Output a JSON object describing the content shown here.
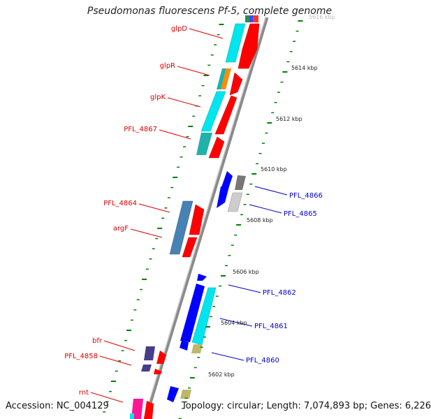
{
  "title": "Pseudomonas fluorescens Pf-5, complete genome",
  "accession_text": "Accession: NC_004129",
  "topology_text": "Topology: circular; Length: 7,074,893 bp; Genes: 6,226",
  "ticks": [
    "5614 kbp",
    "5612 kbp",
    "5610 kbp",
    "5608 kbp",
    "5606 kbp",
    "5604 kbp",
    "5602 kbp"
  ],
  "top_partial_tick": "5616 kbp",
  "genes_left": [
    "glpD",
    "glpR",
    "glpK",
    "PFL_4867",
    "PFL_4864",
    "argF",
    "bfr",
    "PFL_4858",
    "rnt"
  ],
  "genes_right": [
    "PFL_4866",
    "PFL_4865",
    "PFL_4862",
    "PFL_4861",
    "PFL_4860"
  ],
  "colors": {
    "red": "#ff0000",
    "cyan": "#00e5ee",
    "teal": "#20b2aa",
    "orange": "#ff8c00",
    "blue": "#0000ff",
    "steelblue": "#4682b4",
    "gray": "#777777",
    "lightgray": "#cccccc",
    "khaki": "#bdb76b",
    "slate": "#483d8b",
    "magenta": "#ff1493",
    "green": "#008000"
  }
}
